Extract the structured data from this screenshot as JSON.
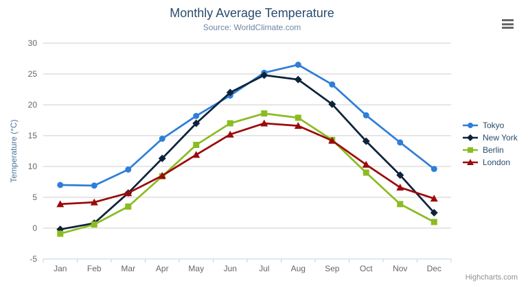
{
  "chart": {
    "title": "Monthly Average Temperature",
    "subtitle": "Source: WorldClimate.com",
    "y_axis_title": "Temperature (°C)",
    "credits": "Highcharts.com"
  },
  "chart_data": {
    "type": "line",
    "title": "Monthly Average Temperature",
    "subtitle": "Source: WorldClimate.com",
    "xlabel": "",
    "ylabel": "Temperature (°C)",
    "ylim": [
      -5,
      30
    ],
    "y_tick_step": 5,
    "grid": true,
    "legend_position": "right",
    "categories": [
      "Jan",
      "Feb",
      "Mar",
      "Apr",
      "May",
      "Jun",
      "Jul",
      "Aug",
      "Sep",
      "Oct",
      "Nov",
      "Dec"
    ],
    "series": [
      {
        "name": "Tokyo",
        "color": "#2f7ed8",
        "marker": "circle",
        "values": [
          7.0,
          6.9,
          9.5,
          14.5,
          18.2,
          21.5,
          25.2,
          26.5,
          23.3,
          18.3,
          13.9,
          9.6
        ]
      },
      {
        "name": "New York",
        "color": "#0d233a",
        "marker": "diamond",
        "values": [
          -0.2,
          0.8,
          5.7,
          11.3,
          17.0,
          22.0,
          24.8,
          24.1,
          20.1,
          14.1,
          8.6,
          2.5
        ]
      },
      {
        "name": "Berlin",
        "color": "#8bbc21",
        "marker": "square",
        "values": [
          -0.9,
          0.6,
          3.5,
          8.4,
          13.5,
          17.0,
          18.6,
          17.9,
          14.3,
          9.0,
          3.9,
          1.0
        ]
      },
      {
        "name": "London",
        "color": "#9c0a0a",
        "marker": "triangle",
        "values": [
          3.9,
          4.2,
          5.7,
          8.5,
          11.9,
          15.2,
          17.0,
          16.6,
          14.2,
          10.3,
          6.6,
          4.8
        ]
      }
    ],
    "styles": {
      "grid_color": "#cccccc",
      "axis_line_color": "#c0d0e0",
      "tick_label_color": "#666666",
      "legend_text_color": "#274b6d"
    }
  }
}
